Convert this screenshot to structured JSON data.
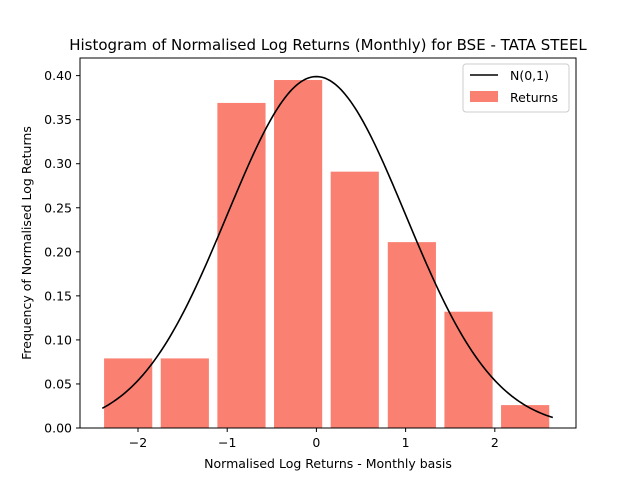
{
  "chart_data": {
    "type": "bar",
    "title": "Histogram of Normalised Log Returns (Monthly) for BSE - TATA STEEL",
    "xlabel": "Normalised Log Returns - Monthly basis",
    "ylabel": "Frequency of Normalised Log Returns",
    "xlim": [
      -2.65,
      2.91
    ],
    "ylim": [
      0,
      0.42
    ],
    "xticks": [
      -2,
      -1,
      0,
      1,
      2
    ],
    "xtick_labels": [
      "−2",
      "−1",
      "0",
      "1",
      "2"
    ],
    "yticks": [
      0.0,
      0.05,
      0.1,
      0.15,
      0.2,
      0.25,
      0.3,
      0.35,
      0.4
    ],
    "ytick_labels": [
      "0.00",
      "0.05",
      "0.10",
      "0.15",
      "0.20",
      "0.25",
      "0.30",
      "0.35",
      "0.40"
    ],
    "bins": {
      "centers": [
        -2.11,
        -1.475,
        -0.84,
        -0.205,
        0.43,
        1.07,
        1.705,
        2.34
      ],
      "width": 0.54,
      "values": [
        0.079,
        0.079,
        0.369,
        0.395,
        0.291,
        0.211,
        0.132,
        0.026
      ]
    },
    "curve": {
      "name": "N(0,1)",
      "x_range": [
        -2.4,
        2.65
      ],
      "color": "#000000"
    },
    "bar_color": "#fa8072",
    "legend": {
      "placement": "top-right",
      "entries": [
        "N(0,1)",
        "Returns"
      ]
    },
    "grid": false
  }
}
